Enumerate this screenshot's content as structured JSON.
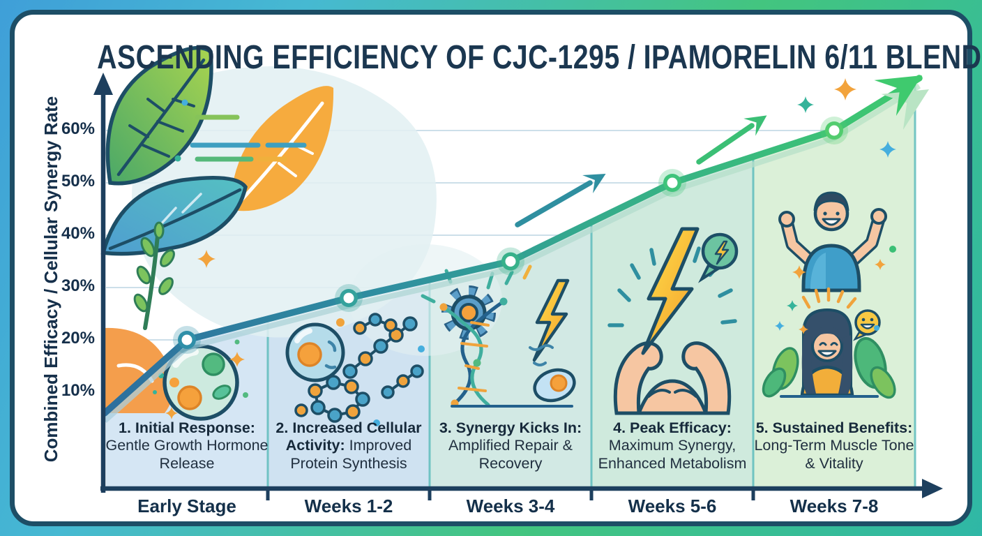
{
  "title": "ASCENDING EFFICIENCY OF CJC-1295 / IPAMORELIN 6/11 BLEND",
  "y_axis": {
    "label": "Combined Efficacy / Cellular Synergy Rate",
    "ticks": [
      "60%",
      "50%",
      "40%",
      "30%",
      "20%",
      "10%"
    ]
  },
  "x_axis": {
    "labels": [
      "Early Stage",
      "Weeks 1-2",
      "Weeks 3-4",
      "Weeks 5-6",
      "Weeks 7-8"
    ]
  },
  "stages": [
    {
      "heading": "1. Initial Response:",
      "body": "Gentle Growth Hormone Release",
      "icon": "cell-icon",
      "panel_color": "#d5e6f4"
    },
    {
      "heading": "2. Increased Cellular Activity:",
      "body": "Improved Protein Synthesis",
      "icon": "peptide-chains-icon",
      "panel_color": "#cfe2f1"
    },
    {
      "heading": "3. Synergy Kicks In:",
      "body": "Amplified Repair & Recovery",
      "icon": "gear-dna-lightning-icon",
      "panel_color": "#d2e9e4"
    },
    {
      "heading": "4. Peak Efficacy:",
      "body": "Maximum Synergy, Enhanced Metabolism",
      "icon": "muscle-lightning-icon",
      "panel_color": "#cfeadd"
    },
    {
      "heading": "5. Sustained Benefits:",
      "body": "Long-Term Muscle Tone & Vitality",
      "icon": "vitality-people-icon",
      "panel_color": "#dbf0d8"
    }
  ],
  "chart_data": {
    "type": "line",
    "title": "Ascending Efficiency of CJC-1295 / Ipamorelin 6/11 Blend",
    "categories": [
      "Early Stage",
      "Weeks 1-2",
      "Weeks 3-4",
      "Weeks 5-6",
      "Weeks 7-8"
    ],
    "values": [
      20,
      28,
      35,
      50,
      60
    ],
    "start_value": 6,
    "trend_end_value": 70,
    "xlabel": "",
    "ylabel": "Combined Efficacy / Cellular Synergy Rate",
    "ylim": [
      0,
      70
    ],
    "ytick_values": [
      10,
      20,
      30,
      40,
      50,
      60
    ],
    "ytick_labels": [
      "10%",
      "20%",
      "30%",
      "40%",
      "50%",
      "60%"
    ],
    "grid": true,
    "legend_position": "none",
    "marker_colors": [
      "#2f8fa8",
      "#34a29c",
      "#37b18a",
      "#3fc47b",
      "#52cc6e"
    ],
    "line_gradient": [
      "#2d6f9e",
      "#2f8fa0",
      "#35ad8a",
      "#3fca6e"
    ],
    "annotations": [
      "rising trend arrows",
      "final ascending arrow"
    ]
  },
  "colors": {
    "frame_gradient": [
      "#3f9fd8",
      "#43c57f",
      "#2fb7a6"
    ],
    "frame_line": "#1d4e66",
    "grid": "#ccdfe9",
    "axis": "#1d3f5e",
    "title_text": "#1b3750"
  }
}
